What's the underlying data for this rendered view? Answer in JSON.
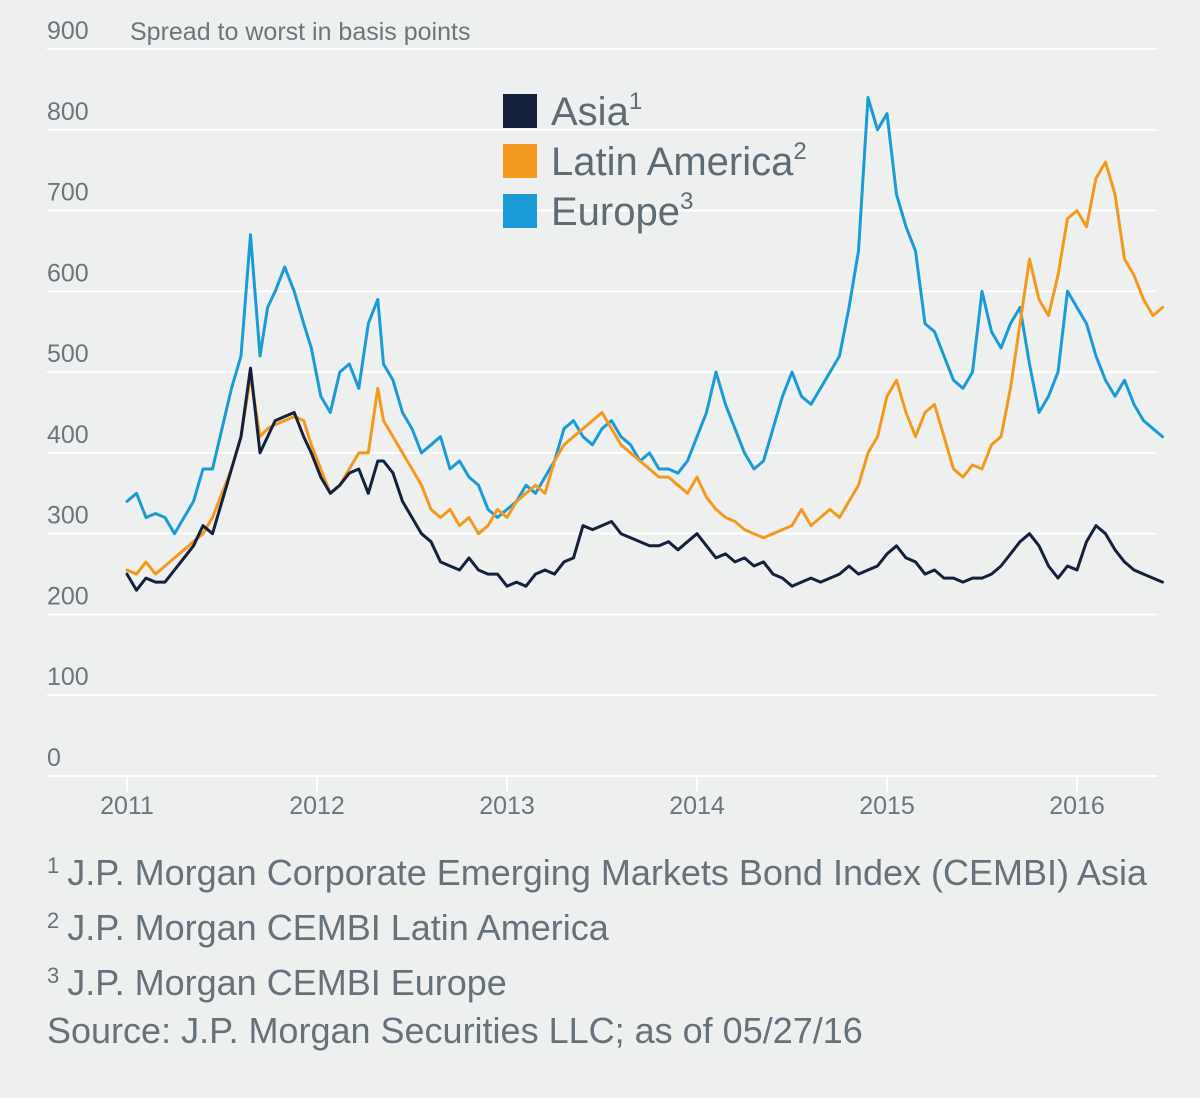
{
  "chart_data": {
    "type": "line",
    "ylabel": "Spread to worst in basis points",
    "ylim": [
      0,
      900
    ],
    "yticks": [
      0,
      100,
      200,
      300,
      400,
      500,
      600,
      700,
      800,
      900
    ],
    "xlim": [
      2011,
      2016.45
    ],
    "xticks": [
      "2011",
      "2012",
      "2013",
      "2014",
      "2015",
      "2016"
    ],
    "grid": "horizontal",
    "legend": "top-center",
    "series": [
      {
        "name": "Asia",
        "sup": "1",
        "color": "#14213d",
        "x": [
          2011.0,
          2011.05,
          2011.1,
          2011.15,
          2011.2,
          2011.25,
          2011.3,
          2011.35,
          2011.4,
          2011.45,
          2011.5,
          2011.55,
          2011.6,
          2011.65,
          2011.7,
          2011.74,
          2011.78,
          2011.83,
          2011.88,
          2011.93,
          2011.97,
          2012.02,
          2012.07,
          2012.12,
          2012.17,
          2012.22,
          2012.27,
          2012.32,
          2012.35,
          2012.4,
          2012.45,
          2012.5,
          2012.55,
          2012.6,
          2012.65,
          2012.7,
          2012.75,
          2012.8,
          2012.85,
          2012.9,
          2012.95,
          2013.0,
          2013.05,
          2013.1,
          2013.15,
          2013.2,
          2013.25,
          2013.3,
          2013.35,
          2013.4,
          2013.45,
          2013.5,
          2013.55,
          2013.6,
          2013.65,
          2013.7,
          2013.75,
          2013.8,
          2013.85,
          2013.9,
          2013.95,
          2014.0,
          2014.05,
          2014.1,
          2014.15,
          2014.2,
          2014.25,
          2014.3,
          2014.35,
          2014.4,
          2014.45,
          2014.5,
          2014.55,
          2014.6,
          2014.65,
          2014.7,
          2014.75,
          2014.8,
          2014.85,
          2014.9,
          2014.95,
          2015.0,
          2015.05,
          2015.1,
          2015.15,
          2015.2,
          2015.25,
          2015.3,
          2015.35,
          2015.4,
          2015.45,
          2015.5,
          2015.55,
          2015.6,
          2015.65,
          2015.7,
          2015.75,
          2015.8,
          2015.85,
          2015.9,
          2015.95,
          2016.0,
          2016.05,
          2016.1,
          2016.15,
          2016.2,
          2016.25,
          2016.3,
          2016.35,
          2016.4,
          2016.45
        ],
        "values": [
          250,
          230,
          245,
          240,
          240,
          255,
          270,
          285,
          310,
          300,
          340,
          380,
          420,
          505,
          400,
          420,
          440,
          445,
          450,
          420,
          400,
          370,
          350,
          360,
          375,
          380,
          350,
          390,
          390,
          375,
          340,
          320,
          300,
          290,
          265,
          260,
          255,
          270,
          255,
          250,
          250,
          235,
          240,
          235,
          250,
          255,
          250,
          265,
          270,
          310,
          305,
          310,
          315,
          300,
          295,
          290,
          285,
          285,
          290,
          280,
          290,
          300,
          285,
          270,
          275,
          265,
          270,
          260,
          265,
          250,
          245,
          235,
          240,
          245,
          240,
          245,
          250,
          260,
          250,
          255,
          260,
          275,
          285,
          270,
          265,
          250,
          255,
          245,
          245,
          240,
          245,
          245,
          250,
          260,
          275,
          290,
          300,
          285,
          260,
          245,
          260,
          255,
          290,
          310,
          300,
          280,
          265,
          255,
          250,
          245,
          240
        ]
      },
      {
        "name": "Latin America",
        "sup": "2",
        "color": "#f39a1e",
        "x": [
          2011.0,
          2011.05,
          2011.1,
          2011.15,
          2011.2,
          2011.25,
          2011.3,
          2011.35,
          2011.4,
          2011.45,
          2011.5,
          2011.55,
          2011.6,
          2011.65,
          2011.7,
          2011.74,
          2011.78,
          2011.83,
          2011.88,
          2011.93,
          2011.97,
          2012.02,
          2012.07,
          2012.12,
          2012.17,
          2012.22,
          2012.27,
          2012.32,
          2012.35,
          2012.4,
          2012.45,
          2012.5,
          2012.55,
          2012.6,
          2012.65,
          2012.7,
          2012.75,
          2012.8,
          2012.85,
          2012.9,
          2012.95,
          2013.0,
          2013.05,
          2013.1,
          2013.15,
          2013.2,
          2013.25,
          2013.3,
          2013.35,
          2013.4,
          2013.45,
          2013.5,
          2013.55,
          2013.6,
          2013.65,
          2013.7,
          2013.75,
          2013.8,
          2013.85,
          2013.9,
          2013.95,
          2014.0,
          2014.05,
          2014.1,
          2014.15,
          2014.2,
          2014.25,
          2014.3,
          2014.35,
          2014.4,
          2014.45,
          2014.5,
          2014.55,
          2014.6,
          2014.65,
          2014.7,
          2014.75,
          2014.8,
          2014.85,
          2014.9,
          2014.95,
          2015.0,
          2015.05,
          2015.1,
          2015.15,
          2015.2,
          2015.25,
          2015.3,
          2015.35,
          2015.4,
          2015.45,
          2015.5,
          2015.55,
          2015.6,
          2015.65,
          2015.7,
          2015.75,
          2015.8,
          2015.85,
          2015.9,
          2015.95,
          2016.0,
          2016.05,
          2016.1,
          2016.15,
          2016.2,
          2016.25,
          2016.3,
          2016.35,
          2016.4,
          2016.45
        ],
        "values": [
          255,
          250,
          265,
          250,
          260,
          270,
          280,
          290,
          300,
          320,
          350,
          380,
          420,
          495,
          420,
          430,
          435,
          440,
          445,
          440,
          410,
          380,
          350,
          360,
          380,
          400,
          400,
          480,
          440,
          420,
          400,
          380,
          360,
          330,
          320,
          330,
          310,
          320,
          300,
          310,
          330,
          320,
          340,
          350,
          360,
          350,
          390,
          410,
          420,
          430,
          440,
          450,
          430,
          410,
          400,
          390,
          380,
          370,
          370,
          360,
          350,
          370,
          345,
          330,
          320,
          315,
          305,
          300,
          295,
          300,
          305,
          310,
          330,
          310,
          320,
          330,
          320,
          340,
          360,
          400,
          420,
          470,
          490,
          450,
          420,
          450,
          460,
          420,
          380,
          370,
          385,
          380,
          410,
          420,
          480,
          560,
          640,
          590,
          570,
          620,
          690,
          700,
          680,
          740,
          760,
          720,
          640,
          620,
          590,
          570,
          580
        ]
      },
      {
        "name": "Europe",
        "sup": "3",
        "color": "#1a9ad6",
        "x": [
          2011.0,
          2011.05,
          2011.1,
          2011.15,
          2011.2,
          2011.25,
          2011.3,
          2011.35,
          2011.4,
          2011.45,
          2011.5,
          2011.55,
          2011.6,
          2011.65,
          2011.7,
          2011.74,
          2011.78,
          2011.83,
          2011.88,
          2011.93,
          2011.97,
          2012.02,
          2012.07,
          2012.12,
          2012.17,
          2012.22,
          2012.27,
          2012.32,
          2012.35,
          2012.4,
          2012.45,
          2012.5,
          2012.55,
          2012.6,
          2012.65,
          2012.7,
          2012.75,
          2012.8,
          2012.85,
          2012.9,
          2012.95,
          2013.0,
          2013.05,
          2013.1,
          2013.15,
          2013.2,
          2013.25,
          2013.3,
          2013.35,
          2013.4,
          2013.45,
          2013.5,
          2013.55,
          2013.6,
          2013.65,
          2013.7,
          2013.75,
          2013.8,
          2013.85,
          2013.9,
          2013.95,
          2014.0,
          2014.05,
          2014.1,
          2014.15,
          2014.2,
          2014.25,
          2014.3,
          2014.35,
          2014.4,
          2014.45,
          2014.5,
          2014.55,
          2014.6,
          2014.65,
          2014.7,
          2014.75,
          2014.8,
          2014.85,
          2014.9,
          2014.95,
          2015.0,
          2015.05,
          2015.1,
          2015.15,
          2015.2,
          2015.25,
          2015.3,
          2015.35,
          2015.4,
          2015.45,
          2015.5,
          2015.55,
          2015.6,
          2015.65,
          2015.7,
          2015.75,
          2015.8,
          2015.85,
          2015.9,
          2015.95,
          2016.0,
          2016.05,
          2016.1,
          2016.15,
          2016.2,
          2016.25,
          2016.3,
          2016.35,
          2016.4,
          2016.45
        ],
        "values": [
          340,
          350,
          320,
          325,
          320,
          300,
          320,
          340,
          380,
          380,
          430,
          480,
          520,
          670,
          520,
          580,
          600,
          630,
          600,
          560,
          530,
          470,
          450,
          500,
          510,
          480,
          560,
          590,
          510,
          490,
          450,
          430,
          400,
          410,
          420,
          380,
          390,
          370,
          360,
          330,
          320,
          330,
          340,
          360,
          350,
          370,
          390,
          430,
          440,
          420,
          410,
          430,
          440,
          420,
          410,
          390,
          400,
          380,
          380,
          375,
          390,
          420,
          450,
          500,
          460,
          430,
          400,
          380,
          390,
          430,
          470,
          500,
          470,
          460,
          480,
          500,
          520,
          580,
          650,
          840,
          800,
          820,
          720,
          680,
          650,
          560,
          550,
          520,
          490,
          480,
          500,
          600,
          550,
          530,
          560,
          580,
          510,
          450,
          470,
          500,
          600,
          580,
          560,
          520,
          490,
          470,
          490,
          460,
          440,
          430,
          420
        ]
      }
    ]
  },
  "footnotes": [
    {
      "sup": "1",
      "text": "J.P. Morgan Corporate Emerging Markets Bond Index (CEMBI) Asia"
    },
    {
      "sup": "2",
      "text": "J.P. Morgan CEMBI Latin America"
    },
    {
      "sup": "3",
      "text": "J.P. Morgan CEMBI Europe"
    }
  ],
  "source": "Source: J.P. Morgan Securities LLC; as of 05/27/16"
}
